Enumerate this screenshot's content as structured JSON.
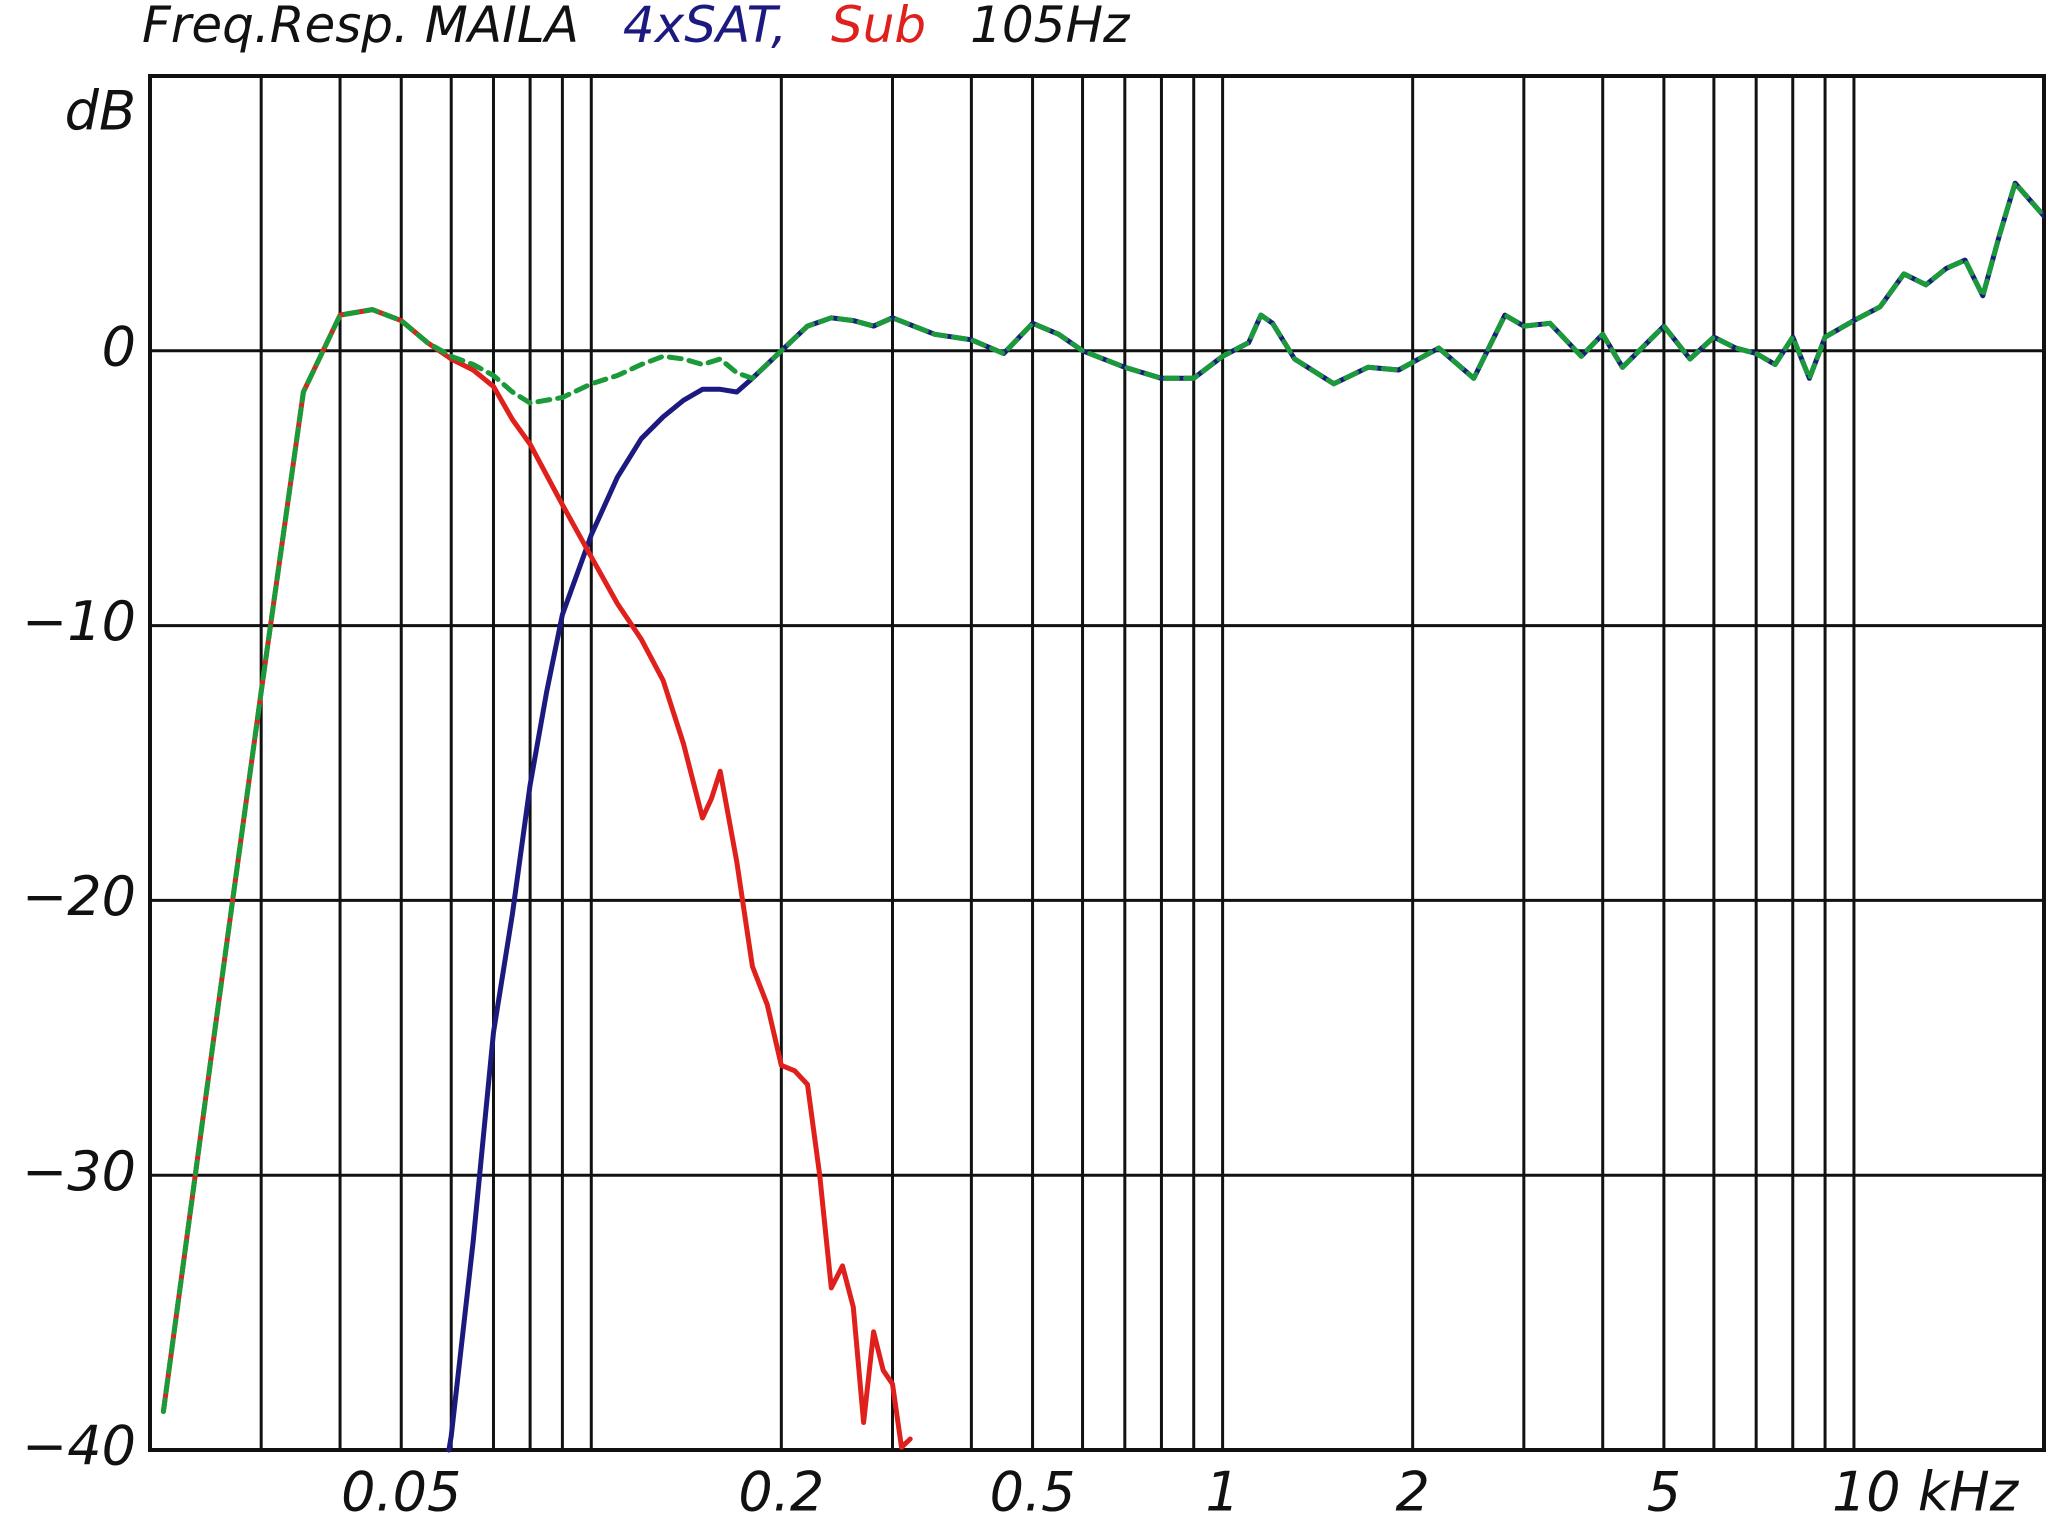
{
  "chart_data": {
    "type": "line",
    "title": "Freq.Resp. MAILA",
    "title_suffix": "105Hz",
    "ylabel": "dB",
    "log_x": true,
    "xlim": [
      0.02,
      20
    ],
    "ylim": [
      -40,
      10
    ],
    "xticks": [
      0.05,
      0.2,
      0.5,
      1,
      2,
      5,
      {
        "value": 10,
        "label": "10 kHz"
      }
    ],
    "xgrid": [
      0.03,
      0.04,
      0.05,
      0.06,
      0.07,
      0.08,
      0.09,
      0.1,
      0.2,
      0.3,
      0.4,
      0.5,
      0.6,
      0.7,
      0.8,
      0.9,
      1,
      2,
      3,
      4,
      5,
      6,
      7,
      8,
      9,
      10
    ],
    "yticks": [
      0,
      {
        "value": -10,
        "label": "−10"
      },
      {
        "value": -20,
        "label": "−20"
      },
      {
        "value": -30,
        "label": "−30"
      },
      {
        "value": -40,
        "label": "−40"
      }
    ],
    "grid": true,
    "series": [
      {
        "name": "4xSAT,",
        "color": "#1c1a7e",
        "dashed": false,
        "x": [
          0.0595,
          0.06,
          0.065,
          0.07,
          0.075,
          0.08,
          0.085,
          0.09,
          0.1,
          0.11,
          0.12,
          0.13,
          0.14,
          0.15,
          0.16,
          0.17,
          0.18,
          0.2,
          0.22,
          0.24,
          0.26,
          0.28,
          0.3,
          0.35,
          0.4,
          0.45,
          0.5,
          0.55,
          0.6,
          0.7,
          0.8,
          0.9,
          1.0,
          1.1,
          1.15,
          1.2,
          1.3,
          1.5,
          1.7,
          1.9,
          2.2,
          2.5,
          2.8,
          3.0,
          3.3,
          3.7,
          4.0,
          4.3,
          5.0,
          5.5,
          6.0,
          6.5,
          7.0,
          7.5,
          8.0,
          8.5,
          9.0,
          10,
          11,
          12,
          13,
          14,
          15,
          16,
          17,
          18,
          20
        ],
        "values": [
          -40,
          -39.5,
          -32.4,
          -24.8,
          -20.5,
          -15.8,
          -12.4,
          -9.6,
          -6.7,
          -4.6,
          -3.2,
          -2.4,
          -1.8,
          -1.4,
          -1.4,
          -1.5,
          -1.0,
          0,
          0.9,
          1.2,
          1.1,
          0.9,
          1.2,
          0.6,
          0.4,
          -0.1,
          1.0,
          0.6,
          0,
          -0.6,
          -1.0,
          -1.0,
          -0.2,
          0.3,
          1.3,
          1.0,
          -0.3,
          -1.2,
          -0.6,
          -0.7,
          0.1,
          -1.0,
          1.3,
          0.9,
          1.0,
          -0.2,
          0.6,
          -0.6,
          0.9,
          -0.3,
          0.5,
          0.1,
          -0.1,
          -0.5,
          0.5,
          -1.0,
          0.5,
          1.1,
          1.6,
          2.8,
          2.4,
          3.0,
          3.3,
          2.0,
          4.2,
          6.1,
          4.9
        ]
      },
      {
        "name": "Sub",
        "color": "#e0201c",
        "dashed": false,
        "x": [
          0.021,
          0.025,
          0.03,
          0.035,
          0.04,
          0.045,
          0.05,
          0.055,
          0.06,
          0.065,
          0.07,
          0.075,
          0.08,
          0.09,
          0.1,
          0.11,
          0.12,
          0.13,
          0.14,
          0.15,
          0.155,
          0.16,
          0.17,
          0.18,
          0.19,
          0.2,
          0.21,
          0.22,
          0.23,
          0.24,
          0.25,
          0.26,
          0.27,
          0.28,
          0.29,
          0.3,
          0.31,
          0.32
        ],
        "values": [
          -38.6,
          -25.7,
          -12.4,
          -1.5,
          1.3,
          1.5,
          1.1,
          0.3,
          -0.3,
          -0.7,
          -1.3,
          -2.5,
          -3.4,
          -5.6,
          -7.5,
          -9.2,
          -10.5,
          -12.0,
          -14.3,
          -17.0,
          -16.3,
          -15.3,
          -18.6,
          -22.4,
          -23.8,
          -26.0,
          -26.2,
          -26.7,
          -30.0,
          -34.1,
          -33.3,
          -34.8,
          -39.0,
          -35.7,
          -37.1,
          -37.6,
          -39.9,
          -39.6
        ]
      },
      {
        "color": "#1a9a3a",
        "dashed": true,
        "x": [
          0.021,
          0.025,
          0.03,
          0.035,
          0.04,
          0.045,
          0.05,
          0.055,
          0.06,
          0.065,
          0.07,
          0.075,
          0.08,
          0.09,
          0.1,
          0.11,
          0.12,
          0.13,
          0.14,
          0.15,
          0.16,
          0.17,
          0.18,
          0.2,
          0.22,
          0.24,
          0.26,
          0.28,
          0.3,
          0.35,
          0.4,
          0.45,
          0.5,
          0.55,
          0.6,
          0.7,
          0.8,
          0.9,
          1.0,
          1.1,
          1.15,
          1.2,
          1.3,
          1.5,
          1.7,
          1.9,
          2.2,
          2.5,
          2.8,
          3.0,
          3.3,
          3.7,
          4.0,
          4.3,
          5.0,
          5.5,
          6.0,
          6.5,
          7.0,
          7.5,
          8.0,
          8.5,
          9.0,
          10,
          11,
          12,
          13,
          14,
          15,
          16,
          17,
          18,
          20
        ],
        "values": [
          -38.6,
          -25.7,
          -12.4,
          -1.5,
          1.3,
          1.5,
          1.1,
          0.3,
          -0.2,
          -0.5,
          -0.9,
          -1.5,
          -1.9,
          -1.7,
          -1.2,
          -0.9,
          -0.5,
          -0.2,
          -0.3,
          -0.5,
          -0.3,
          -0.8,
          -1.0,
          0,
          0.9,
          1.2,
          1.1,
          0.9,
          1.2,
          0.6,
          0.4,
          -0.1,
          1.0,
          0.6,
          0,
          -0.6,
          -1.0,
          -1.0,
          -0.2,
          0.3,
          1.3,
          1.0,
          -0.3,
          -1.2,
          -0.6,
          -0.7,
          0.1,
          -1.0,
          1.3,
          0.9,
          1.0,
          -0.2,
          0.6,
          -0.6,
          0.9,
          -0.3,
          0.5,
          0.1,
          -0.1,
          -0.5,
          0.5,
          -1.0,
          0.5,
          1.1,
          1.6,
          2.8,
          2.4,
          3.0,
          3.3,
          2.0,
          4.2,
          6.1,
          4.9
        ]
      }
    ]
  }
}
